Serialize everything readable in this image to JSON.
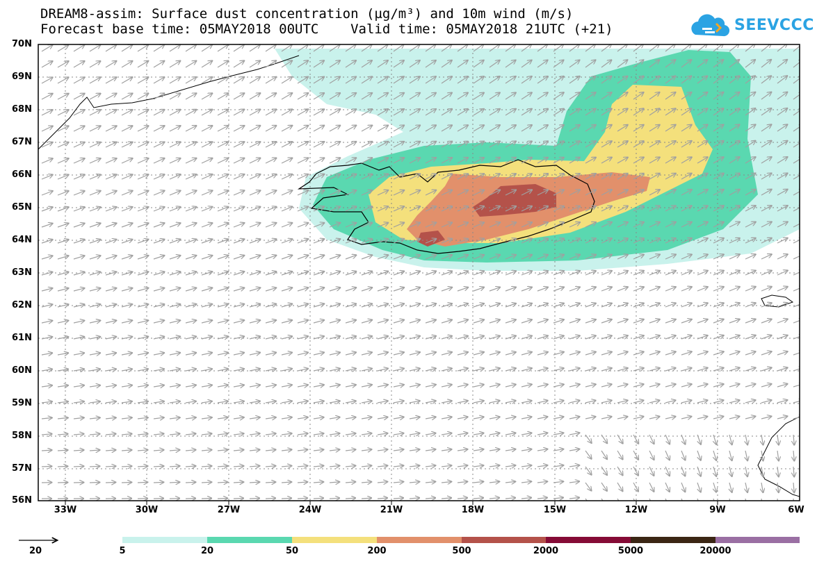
{
  "title": {
    "line1": "DREAM8-assim: Surface dust concentration (µg/m³) and 10m wind (m/s)",
    "line2": "Forecast base time: 05MAY2018 00UTC    Valid time: 05MAY2018 21UTC (+21)"
  },
  "logo": {
    "text": "SEEVCCC",
    "icon": "cloud-icon",
    "color": "#2ba3e3"
  },
  "map": {
    "lat_labels": [
      "70N",
      "69N",
      "68N",
      "67N",
      "66N",
      "65N",
      "64N",
      "63N",
      "62N",
      "61N",
      "60N",
      "59N",
      "58N",
      "57N",
      "56N"
    ],
    "lon_labels": [
      "33W",
      "30W",
      "27W",
      "24W",
      "21W",
      "18W",
      "15W",
      "12W",
      "9W",
      "6W"
    ]
  },
  "legend": {
    "wind_reference": "20",
    "levels": [
      {
        "label": "5",
        "color": "#c9f2ec"
      },
      {
        "label": "20",
        "color": "#5ad8b0"
      },
      {
        "label": "50",
        "color": "#f4e07c"
      },
      {
        "label": "200",
        "color": "#e2906b"
      },
      {
        "label": "500",
        "color": "#b4524a"
      },
      {
        "label": "2000",
        "color": "#850b36"
      },
      {
        "label": "5000",
        "color": "#3b2614"
      },
      {
        "label": "20000",
        "color": "#9a6fa3"
      }
    ]
  }
}
